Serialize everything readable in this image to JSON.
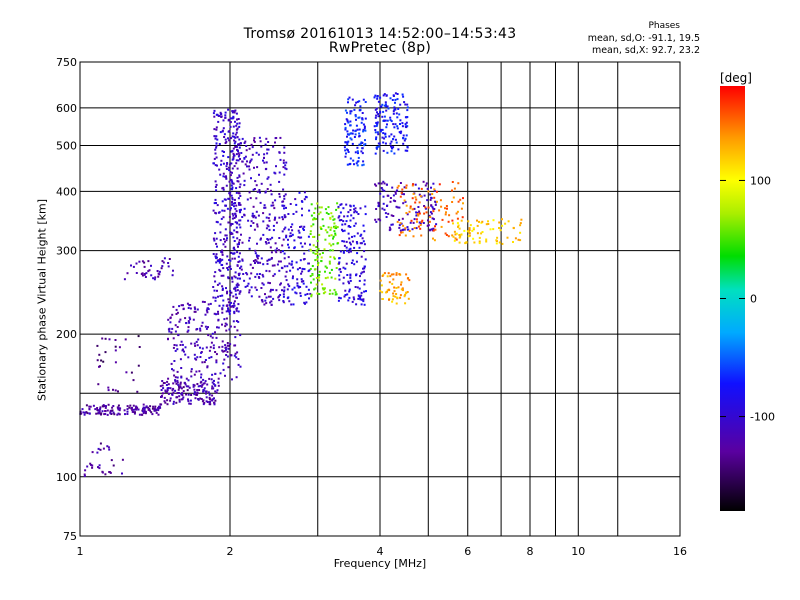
{
  "header": {
    "title_line1": "Tromsø 20161013 14:52:00–14:53:43",
    "title_line2": "RwPretec (8p)",
    "phase_title": "Phases",
    "phase_o": "mean, sd,O: -91.1, 19.5",
    "phase_x": "mean, sd,X: 92.7, 23.2"
  },
  "chart_data": {
    "type": "scatter",
    "xlabel": "Frequency [MHz]",
    "ylabel": "Stationary phase Virtual Height [km]",
    "x_scale": "log",
    "y_scale": "log",
    "xlim": [
      1,
      16
    ],
    "ylim": [
      75,
      750
    ],
    "x_ticks": [
      {
        "value": 1,
        "label": "1"
      },
      {
        "value": 2,
        "label": "2"
      },
      {
        "value": 4,
        "label": "4"
      },
      {
        "value": 6,
        "label": "6"
      },
      {
        "value": 8,
        "label": "8"
      },
      {
        "value": 10,
        "label": "10"
      },
      {
        "value": 16,
        "label": "16"
      }
    ],
    "x_grid_extra": [
      3,
      5,
      7,
      9,
      12
    ],
    "y_ticks": [
      {
        "value": 75,
        "label": "75"
      },
      {
        "value": 100,
        "label": "100"
      },
      {
        "value": 200,
        "label": "200"
      },
      {
        "value": 300,
        "label": "300"
      },
      {
        "value": 400,
        "label": "400"
      },
      {
        "value": 500,
        "label": "500"
      },
      {
        "value": 600,
        "label": "600"
      },
      {
        "value": 750,
        "label": "750"
      }
    ],
    "y_grid_extra": [
      150
    ],
    "grid": true,
    "colorbar": {
      "label": "[deg]",
      "range": [
        -180,
        180
      ],
      "ticks": [
        {
          "value": 100,
          "label": "100"
        },
        {
          "value": 0,
          "label": "0"
        },
        {
          "value": -100,
          "label": "-100"
        }
      ]
    },
    "series": [
      {
        "name": "clusters",
        "clusters": [
          {
            "x": [
              1.0,
              1.45
            ],
            "y": [
              135,
              142
            ],
            "phase": -125,
            "n": 140
          },
          {
            "x": [
              1.45,
              1.9
            ],
            "y": [
              142,
              160
            ],
            "phase": -120,
            "n": 160
          },
          {
            "x": [
              1.5,
              2.1
            ],
            "y": [
              160,
              235
            ],
            "phase": -115,
            "n": 220
          },
          {
            "x": [
              1.85,
              2.1
            ],
            "y": [
              220,
              600
            ],
            "phase": -105,
            "n": 350
          },
          {
            "x": [
              2.0,
              2.6
            ],
            "y": [
              230,
              520
            ],
            "phase": -110,
            "n": 350
          },
          {
            "x": [
              2.55,
              2.9
            ],
            "y": [
              230,
              400
            ],
            "phase": -95,
            "n": 120
          },
          {
            "x": [
              2.9,
              3.3
            ],
            "y": [
              240,
              380
            ],
            "phase": 60,
            "n": 140
          },
          {
            "x": [
              3.3,
              3.75
            ],
            "y": [
              230,
              380
            ],
            "phase": -95,
            "n": 150
          },
          {
            "x": [
              3.4,
              3.75
            ],
            "y": [
              450,
              640
            ],
            "phase": -70,
            "n": 110
          },
          {
            "x": [
              3.9,
              4.55
            ],
            "y": [
              480,
              645
            ],
            "phase": -75,
            "n": 150
          },
          {
            "x": [
              4.0,
              4.6
            ],
            "y": [
              230,
              270
            ],
            "phase": 130,
            "n": 60
          },
          {
            "x": [
              3.9,
              5.2
            ],
            "y": [
              330,
              420
            ],
            "phase": -110,
            "n": 130
          },
          {
            "x": [
              4.3,
              5.9
            ],
            "y": [
              315,
              420
            ],
            "phase": 150,
            "n": 100
          },
          {
            "x": [
              5.6,
              7.8
            ],
            "y": [
              310,
              350
            ],
            "phase": 120,
            "n": 80
          },
          {
            "x": [
              1.02,
              1.22
            ],
            "y": [
              100,
              118
            ],
            "phase": -125,
            "n": 30
          },
          {
            "x": [
              1.22,
              1.55
            ],
            "y": [
              260,
              290
            ],
            "phase": -120,
            "n": 40
          },
          {
            "x": [
              1.08,
              1.32
            ],
            "y": [
              150,
              200
            ],
            "phase": -140,
            "n": 30
          }
        ]
      }
    ]
  }
}
